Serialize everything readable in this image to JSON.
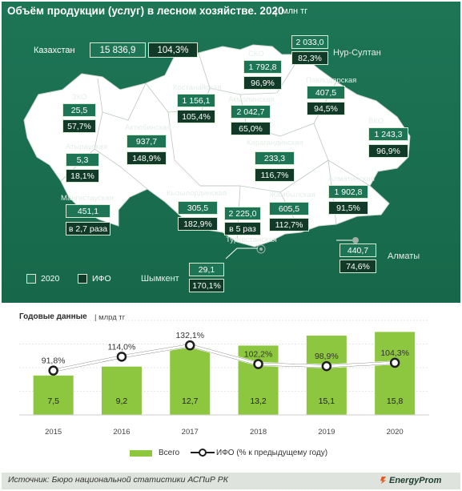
{
  "header": {
    "title": "Объём продукции (услуг) в лесном хозяйстве. 2020",
    "separator": "|",
    "unit": "млн тг"
  },
  "colors": {
    "panel": "#1d7556",
    "ifo_box": "#113a29",
    "map_fill": "#ffffff",
    "bar": "#8dc63f",
    "line": "#ffffff"
  },
  "kazakhstan": {
    "name": "Казахстан",
    "value": "15 836,9",
    "ifo": "104,3%"
  },
  "regions": [
    {
      "id": "zko",
      "name": "ЗКО",
      "value": "25,5",
      "ifo": "57,7%"
    },
    {
      "id": "atyrau",
      "name": "Атырауская",
      "value": "5,3",
      "ifo": "18,1%"
    },
    {
      "id": "mangistau",
      "name": "Мангистауская",
      "value": "451,1",
      "ifo": "в 2,7 раза"
    },
    {
      "id": "aktobe",
      "name": "Актюбинская",
      "value": "937,7",
      "ifo": "148,9%"
    },
    {
      "id": "kostanay",
      "name": "Костанайская",
      "value": "1 156,1",
      "ifo": "105,4%"
    },
    {
      "id": "sko",
      "name": "СКО",
      "value": "1 792,8",
      "ifo": "96,9%"
    },
    {
      "id": "akmola",
      "name": "Акмолинская",
      "value": "2 042,7",
      "ifo": "65,0%"
    },
    {
      "id": "nursultan",
      "name": "Нур-Султан",
      "value": "2 033,0",
      "ifo": "82,3%"
    },
    {
      "id": "pavlodar",
      "name": "Павлодарская",
      "value": "407,5",
      "ifo": "94,5%"
    },
    {
      "id": "vko",
      "name": "ВКО",
      "value": "1 243,3",
      "ifo": "96,9%"
    },
    {
      "id": "karaganda",
      "name": "Карагандинская",
      "value": "233,3",
      "ifo": "116,7%"
    },
    {
      "id": "kyzylorda",
      "name": "Кызылординская",
      "value": "305,5",
      "ifo": "182,9%"
    },
    {
      "id": "turkestan",
      "name": "Туркестанская",
      "value": "2 225,0",
      "ifo": "в 5 раз"
    },
    {
      "id": "zhambyl",
      "name": "Жамбылская",
      "value": "605,5",
      "ifo": "112,7%"
    },
    {
      "id": "almaty_obl",
      "name": "Алматинская",
      "value": "1 902,8",
      "ifo": "91,5%"
    },
    {
      "id": "almaty",
      "name": "Алматы",
      "value": "440,7",
      "ifo": "74,6%"
    },
    {
      "id": "shymkent",
      "name": "Шымкент",
      "value": "29,1",
      "ifo": "170,1%"
    }
  ],
  "map_legend": {
    "label_2020": "2020",
    "label_ifo": "ИФО"
  },
  "annual": {
    "title": "Годовые данные",
    "separator": "|",
    "unit": "млрд тг"
  },
  "chart_data": {
    "type": "bar",
    "categories": [
      "2015",
      "2016",
      "2017",
      "2018",
      "2019",
      "2020"
    ],
    "series": [
      {
        "name": "Всего",
        "type": "bar",
        "values": [
          7.5,
          9.2,
          12.7,
          13.2,
          15.1,
          15.8
        ],
        "labels": [
          "7,5",
          "9,2",
          "12,7",
          "13,2",
          "15,1",
          "15,8"
        ]
      },
      {
        "name": "ИФО (% к предыдущему году)",
        "type": "line",
        "values": [
          91.8,
          114.0,
          132.1,
          102.2,
          98.9,
          104.3
        ],
        "labels": [
          "91,8%",
          "114,0%",
          "132,1%",
          "102,2%",
          "98,9%",
          "104,3%"
        ]
      }
    ],
    "grid": true,
    "legend_position": "bottom"
  },
  "footer": {
    "source": "Источник: Бюро национальной  статистики АСПиР РК",
    "brand": "EnergyProm"
  }
}
